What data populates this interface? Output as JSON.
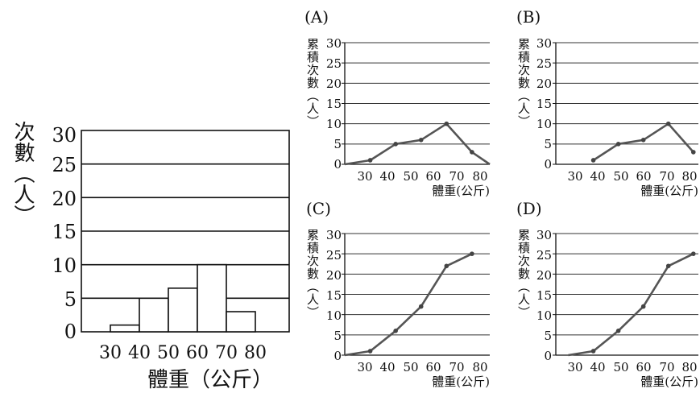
{
  "chart_data": [
    {
      "type": "bar",
      "ylabel": "次數（人）",
      "xlabel": "體重（公斤）",
      "x_ticks": [
        "30",
        "40",
        "50",
        "60",
        "70",
        "80"
      ],
      "y_ticks": [
        "0",
        "5",
        "10",
        "15",
        "20",
        "25",
        "30"
      ],
      "ylim": [
        0,
        30
      ],
      "xlim": [
        30,
        80
      ],
      "bins": [
        [
          30,
          40
        ],
        [
          40,
          50
        ],
        [
          50,
          60
        ],
        [
          60,
          70
        ],
        [
          70,
          80
        ]
      ],
      "values": [
        1,
        5,
        6.5,
        10,
        3
      ]
    },
    {
      "type": "line",
      "tag": "(A)",
      "ylabel": "累積次數（人）",
      "xlabel": "體重(公斤)",
      "x_ticks": [
        "30",
        "40",
        "50",
        "60",
        "70",
        "80"
      ],
      "y_ticks": [
        "0",
        "5",
        "10",
        "15",
        "20",
        "25",
        "30"
      ],
      "xlim": [
        25,
        82
      ],
      "ylim": [
        0,
        30
      ],
      "x": [
        25,
        35,
        45,
        55,
        65,
        75,
        82
      ],
      "y": [
        0,
        1,
        5,
        6,
        10,
        3,
        0
      ]
    },
    {
      "type": "line",
      "tag": "(B)",
      "ylabel": "累積次數（人）",
      "xlabel": "體重(公斤)",
      "x_ticks": [
        "30",
        "40",
        "50",
        "60",
        "70",
        "80"
      ],
      "y_ticks": [
        "0",
        "5",
        "10",
        "15",
        "20",
        "25",
        "30"
      ],
      "xlim": [
        25,
        82
      ],
      "ylim": [
        0,
        30
      ],
      "x": [
        40,
        50,
        60,
        70,
        80
      ],
      "y": [
        1,
        5,
        6,
        10,
        3
      ]
    },
    {
      "type": "line",
      "tag": "(C)",
      "ylabel": "累積次數（人）",
      "xlabel": "體重(公斤)",
      "x_ticks": [
        "30",
        "40",
        "50",
        "60",
        "70",
        "80"
      ],
      "y_ticks": [
        "0",
        "5",
        "10",
        "15",
        "20",
        "25",
        "30"
      ],
      "xlim": [
        25,
        82
      ],
      "ylim": [
        0,
        30
      ],
      "x": [
        25,
        35,
        45,
        55,
        65,
        75
      ],
      "y": [
        0,
        1,
        6,
        12,
        22,
        25
      ]
    },
    {
      "type": "line",
      "tag": "(D)",
      "ylabel": "累積次數（人）",
      "xlabel": "體重(公斤)",
      "x_ticks": [
        "30",
        "40",
        "50",
        "60",
        "70",
        "80"
      ],
      "y_ticks": [
        "0",
        "5",
        "10",
        "15",
        "20",
        "25",
        "30"
      ],
      "xlim": [
        25,
        82
      ],
      "ylim": [
        0,
        30
      ],
      "x": [
        30,
        40,
        50,
        60,
        70,
        80
      ],
      "y": [
        0,
        1,
        6,
        12,
        22,
        25
      ]
    }
  ]
}
